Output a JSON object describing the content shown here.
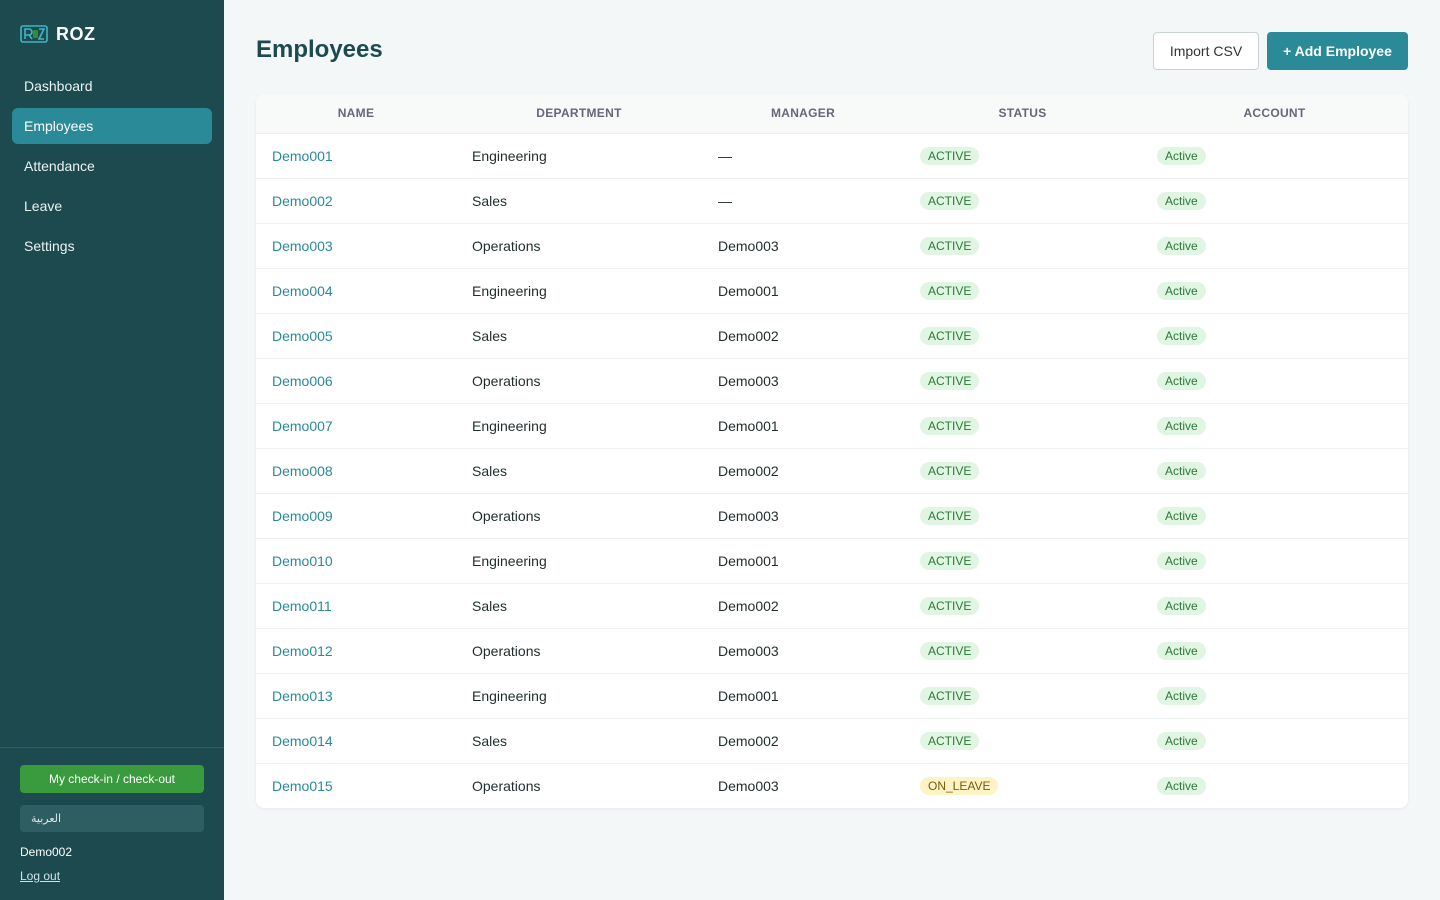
{
  "brand": {
    "logo_icon": "roz-logo-icon",
    "name": "ROZ"
  },
  "nav": [
    {
      "key": "dashboard",
      "label": "Dashboard",
      "active": false
    },
    {
      "key": "employees",
      "label": "Employees",
      "active": true
    },
    {
      "key": "attendance",
      "label": "Attendance",
      "active": false
    },
    {
      "key": "leave",
      "label": "Leave",
      "active": false
    },
    {
      "key": "settings",
      "label": "Settings",
      "active": false
    }
  ],
  "footer": {
    "checkin_label": "My check-in / check-out",
    "language_label": "العربية",
    "user_name": "Demo002",
    "logout_label": "Log out"
  },
  "page": {
    "title": "Employees",
    "import_label": "Import CSV",
    "add_label": "+ Add Employee"
  },
  "table": {
    "columns": [
      "NAME",
      "DEPARTMENT",
      "MANAGER",
      "STATUS",
      "ACCOUNT"
    ],
    "rows": [
      {
        "name": "Demo001",
        "department": "Engineering",
        "manager": "—",
        "status": "ACTIVE",
        "account": "Active"
      },
      {
        "name": "Demo002",
        "department": "Sales",
        "manager": "—",
        "status": "ACTIVE",
        "account": "Active"
      },
      {
        "name": "Demo003",
        "department": "Operations",
        "manager": "Demo003",
        "status": "ACTIVE",
        "account": "Active"
      },
      {
        "name": "Demo004",
        "department": "Engineering",
        "manager": "Demo001",
        "status": "ACTIVE",
        "account": "Active"
      },
      {
        "name": "Demo005",
        "department": "Sales",
        "manager": "Demo002",
        "status": "ACTIVE",
        "account": "Active"
      },
      {
        "name": "Demo006",
        "department": "Operations",
        "manager": "Demo003",
        "status": "ACTIVE",
        "account": "Active"
      },
      {
        "name": "Demo007",
        "department": "Engineering",
        "manager": "Demo001",
        "status": "ACTIVE",
        "account": "Active"
      },
      {
        "name": "Demo008",
        "department": "Sales",
        "manager": "Demo002",
        "status": "ACTIVE",
        "account": "Active"
      },
      {
        "name": "Demo009",
        "department": "Operations",
        "manager": "Demo003",
        "status": "ACTIVE",
        "account": "Active"
      },
      {
        "name": "Demo010",
        "department": "Engineering",
        "manager": "Demo001",
        "status": "ACTIVE",
        "account": "Active"
      },
      {
        "name": "Demo011",
        "department": "Sales",
        "manager": "Demo002",
        "status": "ACTIVE",
        "account": "Active"
      },
      {
        "name": "Demo012",
        "department": "Operations",
        "manager": "Demo003",
        "status": "ACTIVE",
        "account": "Active"
      },
      {
        "name": "Demo013",
        "department": "Engineering",
        "manager": "Demo001",
        "status": "ACTIVE",
        "account": "Active"
      },
      {
        "name": "Demo014",
        "department": "Sales",
        "manager": "Demo002",
        "status": "ACTIVE",
        "account": "Active"
      },
      {
        "name": "Demo015",
        "department": "Operations",
        "manager": "Demo003",
        "status": "ON_LEAVE",
        "account": "Active"
      }
    ]
  },
  "colors": {
    "sidebar_bg": "#1d4a4f",
    "accent": "#2b8a98",
    "checkin_green": "#3a9b3e",
    "status_active_bg": "#e1f5e3",
    "status_leave_bg": "#fdf3c4"
  }
}
